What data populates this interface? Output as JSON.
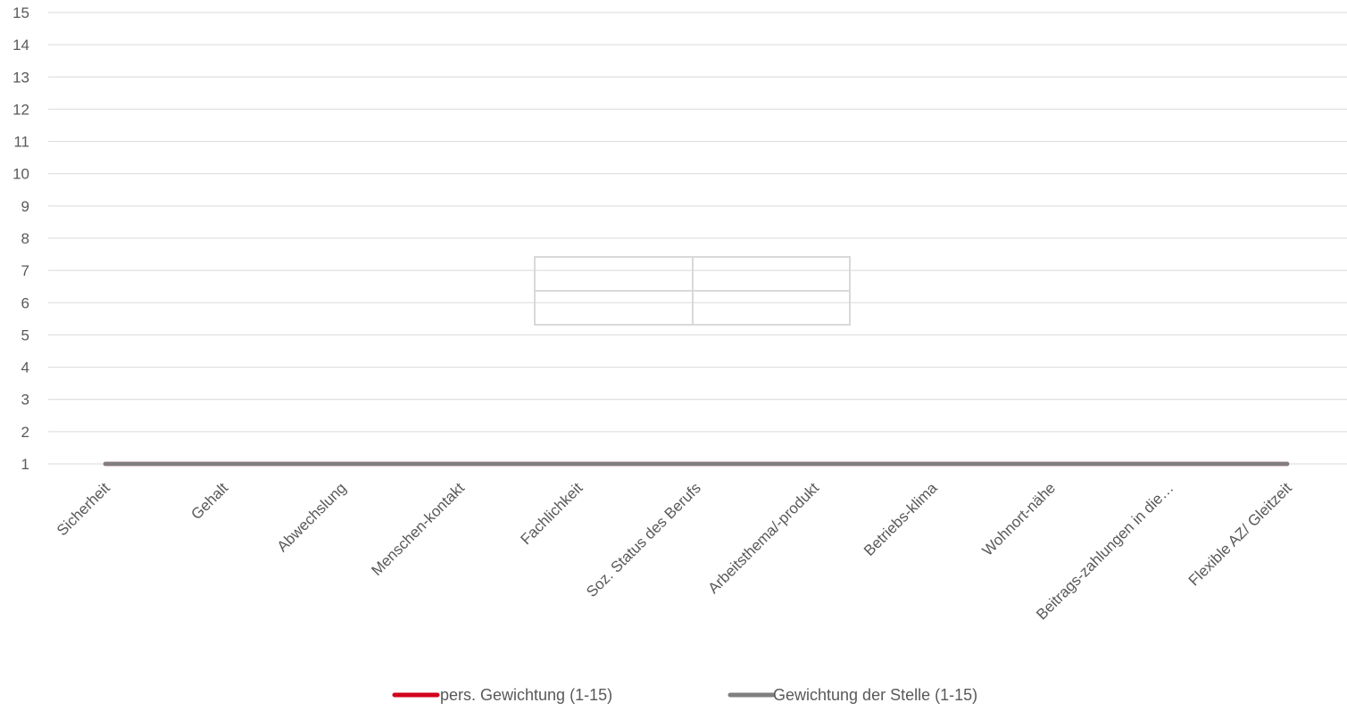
{
  "chart_data": {
    "type": "line",
    "categories": [
      "Sicherheit",
      "Gehalt",
      "Abwechslung",
      "Menschen-kontakt",
      "Fachlichkeit",
      "Soz. Status des Berufs",
      "Arbeitsthema/-produkt",
      "Betriebs-klima",
      "Wohnort-nähe",
      "Beitrags-zahlungen in die…",
      "Flexible AZ/ Gleitzeit"
    ],
    "series": [
      {
        "name": "pers. Gewichtung (1-15)",
        "color": "#d0021b",
        "values": [
          1,
          1,
          1,
          1,
          1,
          1,
          1,
          1,
          1,
          1,
          1
        ]
      },
      {
        "name": "Gewichtung der Stelle (1-15)",
        "color": "#7f7f7f",
        "values": [
          1,
          1,
          1,
          1,
          1,
          1,
          1,
          1,
          1,
          1,
          1
        ]
      }
    ],
    "yticks": [
      1,
      2,
      3,
      4,
      5,
      6,
      7,
      8,
      9,
      10,
      11,
      12,
      13,
      14,
      15
    ],
    "ylim": [
      1,
      15
    ],
    "grid": true,
    "legend": "bottom",
    "gridColor": "#d9d9d9"
  }
}
